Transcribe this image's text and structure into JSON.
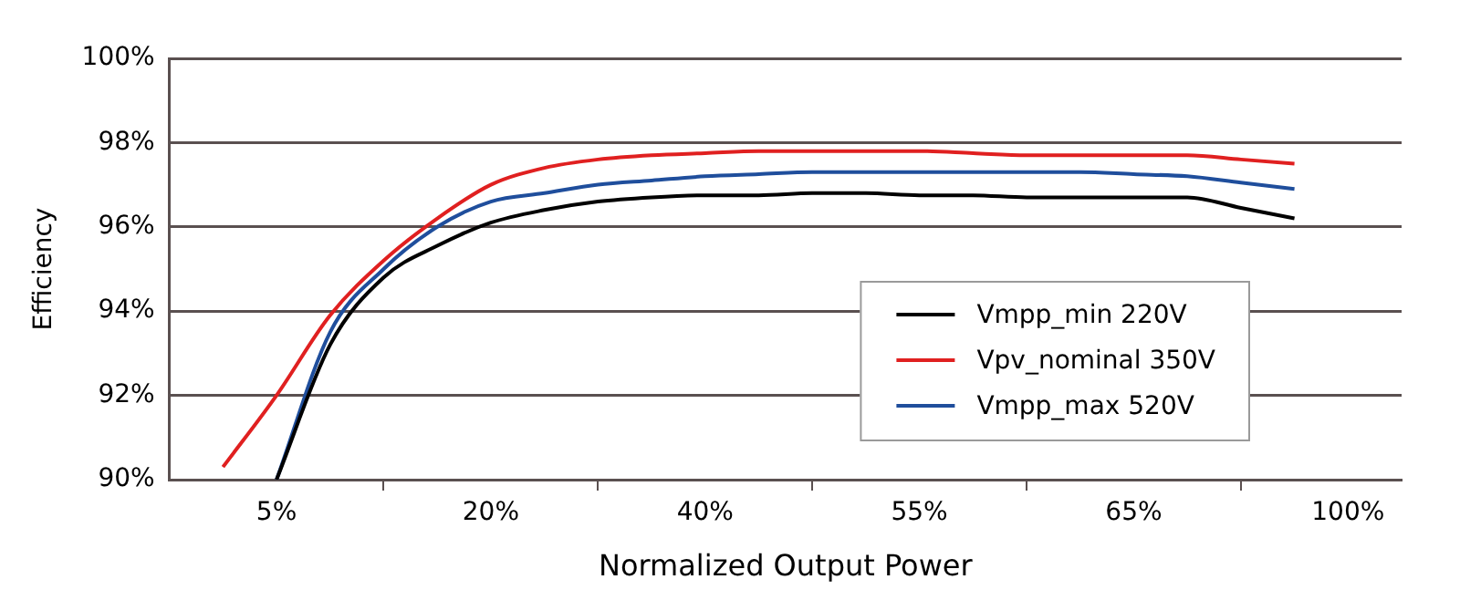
{
  "chart_data": {
    "type": "line",
    "xlabel": "Normalized Output Power",
    "ylabel": "Efficiency",
    "categories": [
      null,
      null,
      "5%",
      null,
      null,
      null,
      "20%",
      null,
      null,
      null,
      "40%",
      null,
      null,
      null,
      "55%",
      null,
      null,
      null,
      "65%",
      null,
      null,
      null,
      "100%",
      null
    ],
    "series": [
      {
        "name": "Vmpp_min 220V",
        "color": "#000000",
        "values": [
          null,
          null,
          90.0,
          93.2,
          94.8,
          95.55,
          96.1,
          96.4,
          96.6,
          96.7,
          96.75,
          96.75,
          96.8,
          96.8,
          96.75,
          96.75,
          96.7,
          96.7,
          96.7,
          96.7,
          96.45,
          96.2,
          null,
          null
        ]
      },
      {
        "name": "Vpv_nominal 350V",
        "color": "#e02020",
        "values": [
          null,
          90.3,
          92.0,
          93.9,
          95.2,
          96.2,
          97.0,
          97.4,
          97.6,
          97.7,
          97.75,
          97.8,
          97.8,
          97.8,
          97.8,
          97.75,
          97.7,
          97.7,
          97.7,
          97.7,
          97.6,
          97.5,
          null,
          null
        ]
      },
      {
        "name": "Vmpp_max 520V",
        "color": "#1f4e9c",
        "values": [
          null,
          null,
          90.0,
          93.5,
          95.0,
          96.0,
          96.6,
          96.8,
          97.0,
          97.1,
          97.2,
          97.25,
          97.3,
          97.3,
          97.3,
          97.3,
          97.3,
          97.3,
          97.25,
          97.2,
          97.05,
          96.9,
          null,
          null
        ]
      }
    ],
    "ylim": [
      90,
      100
    ],
    "yticks": [
      {
        "value": 90,
        "label": "90%"
      },
      {
        "value": 92,
        "label": "92%"
      },
      {
        "value": 94,
        "label": "94%"
      },
      {
        "value": 96,
        "label": "96%"
      },
      {
        "value": 98,
        "label": "98%"
      },
      {
        "value": 100,
        "label": "100%"
      }
    ],
    "grid": "y",
    "legend": "bottom right",
    "marker": "none",
    "line_style": "solid"
  }
}
